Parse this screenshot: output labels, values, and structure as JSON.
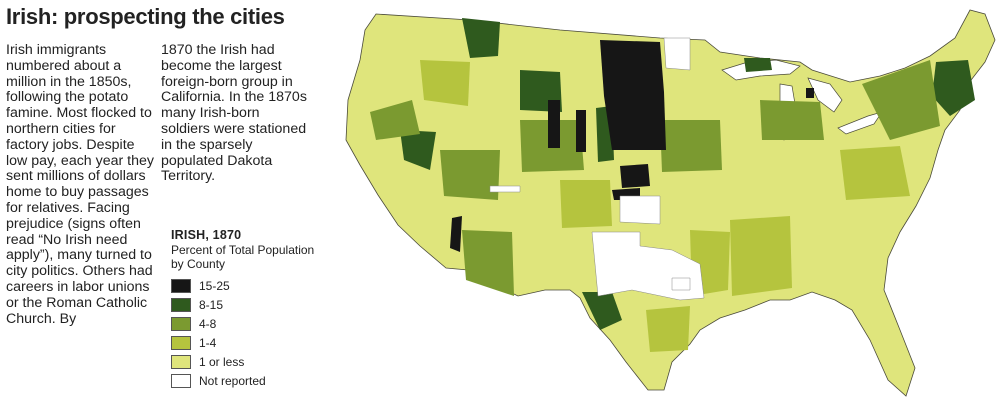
{
  "title": "Irish: prospecting the cities",
  "text_col1": "Irish immigrants numbered about a million in the 1850s, following the potato famine. Most flocked to northern cities for factory jobs. Despite low pay, each year they sent millions of dollars home to buy passages for relatives. Facing prejudice (signs often read “No Irish need apply”), many turned to city politics. Others had careers in labor unions or the Roman Catholic Church. By",
  "text_col2": "1870 the Irish had become the largest foreign-born group in California. In the 1870s many Irish-born soldiers were stationed in the sparsely populated Dakota Territory.",
  "legend": {
    "title": "IRISH, 1870",
    "subtitle": "Percent of Total Population by County",
    "items": [
      {
        "label": "15-25",
        "color": "#161616"
      },
      {
        "label": "8-15",
        "color": "#2f5a1e"
      },
      {
        "label": "4-8",
        "color": "#7b9a30"
      },
      {
        "label": "1-4",
        "color": "#b5c43e"
      },
      {
        "label": "1 or less",
        "color": "#dfe57c"
      },
      {
        "label": "Not reported",
        "color": "#ffffff"
      }
    ]
  }
}
